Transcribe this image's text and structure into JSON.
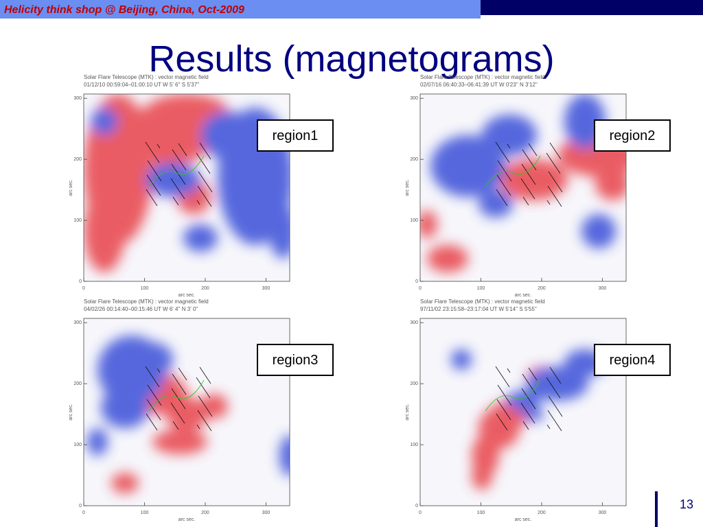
{
  "header": {
    "banner": "Helicity think shop @ Beijing, China,  Oct-2009",
    "title": "Results (magnetograms)",
    "page_number": "13"
  },
  "panels": [
    {
      "instrument": "Solar Flare Telescope (MTK) : vector magnetic field",
      "observation": "01/12/10  00:59:04–01:00:10 UT    W 5' 6''   S 5'37''",
      "region_label": "region1",
      "x_axis_label": "arc sec.",
      "y_axis_label": "arc sec.",
      "xlim": [
        0,
        339
      ],
      "ylim": [
        0,
        307
      ],
      "xticks": [
        0,
        100,
        200,
        300
      ],
      "yticks": [
        0,
        100,
        200,
        300
      ]
    },
    {
      "instrument": "Solar Flare Telescope (MTK) : vector magnetic field",
      "observation": "02/07/16  06:40:33–06:41:39 UT    W 0'23''   N 3'12''",
      "region_label": "region2",
      "x_axis_label": "arc sec.",
      "y_axis_label": "arc sec.",
      "xlim": [
        0,
        339
      ],
      "ylim": [
        0,
        307
      ],
      "xticks": [
        0,
        100,
        200,
        300
      ],
      "yticks": [
        0,
        100,
        200,
        300
      ]
    },
    {
      "instrument": "Solar Flare Telescope (MTK) : vector magnetic field",
      "observation": "04/02/26  00:14:40–00:15:46 UT    W 6' 4''   N 3' 0''",
      "region_label": "region3",
      "x_axis_label": "arc sec.",
      "y_axis_label": "arc sec.",
      "xlim": [
        0,
        339
      ],
      "ylim": [
        0,
        307
      ],
      "xticks": [
        0,
        100,
        200,
        300
      ],
      "yticks": [
        0,
        100,
        200,
        300
      ]
    },
    {
      "instrument": "Solar Flare Telescope (MTK) : vector magnetic field",
      "observation": "97/11/02  23:15:58–23:17:04 UT    W 5'14''   S 5'55''",
      "region_label": "region4",
      "x_axis_label": "arc sec.",
      "y_axis_label": "arc sec.",
      "xlim": [
        0,
        339
      ],
      "ylim": [
        0,
        307
      ],
      "xticks": [
        0,
        100,
        200,
        300
      ],
      "yticks": [
        0,
        100,
        200,
        300
      ]
    }
  ]
}
